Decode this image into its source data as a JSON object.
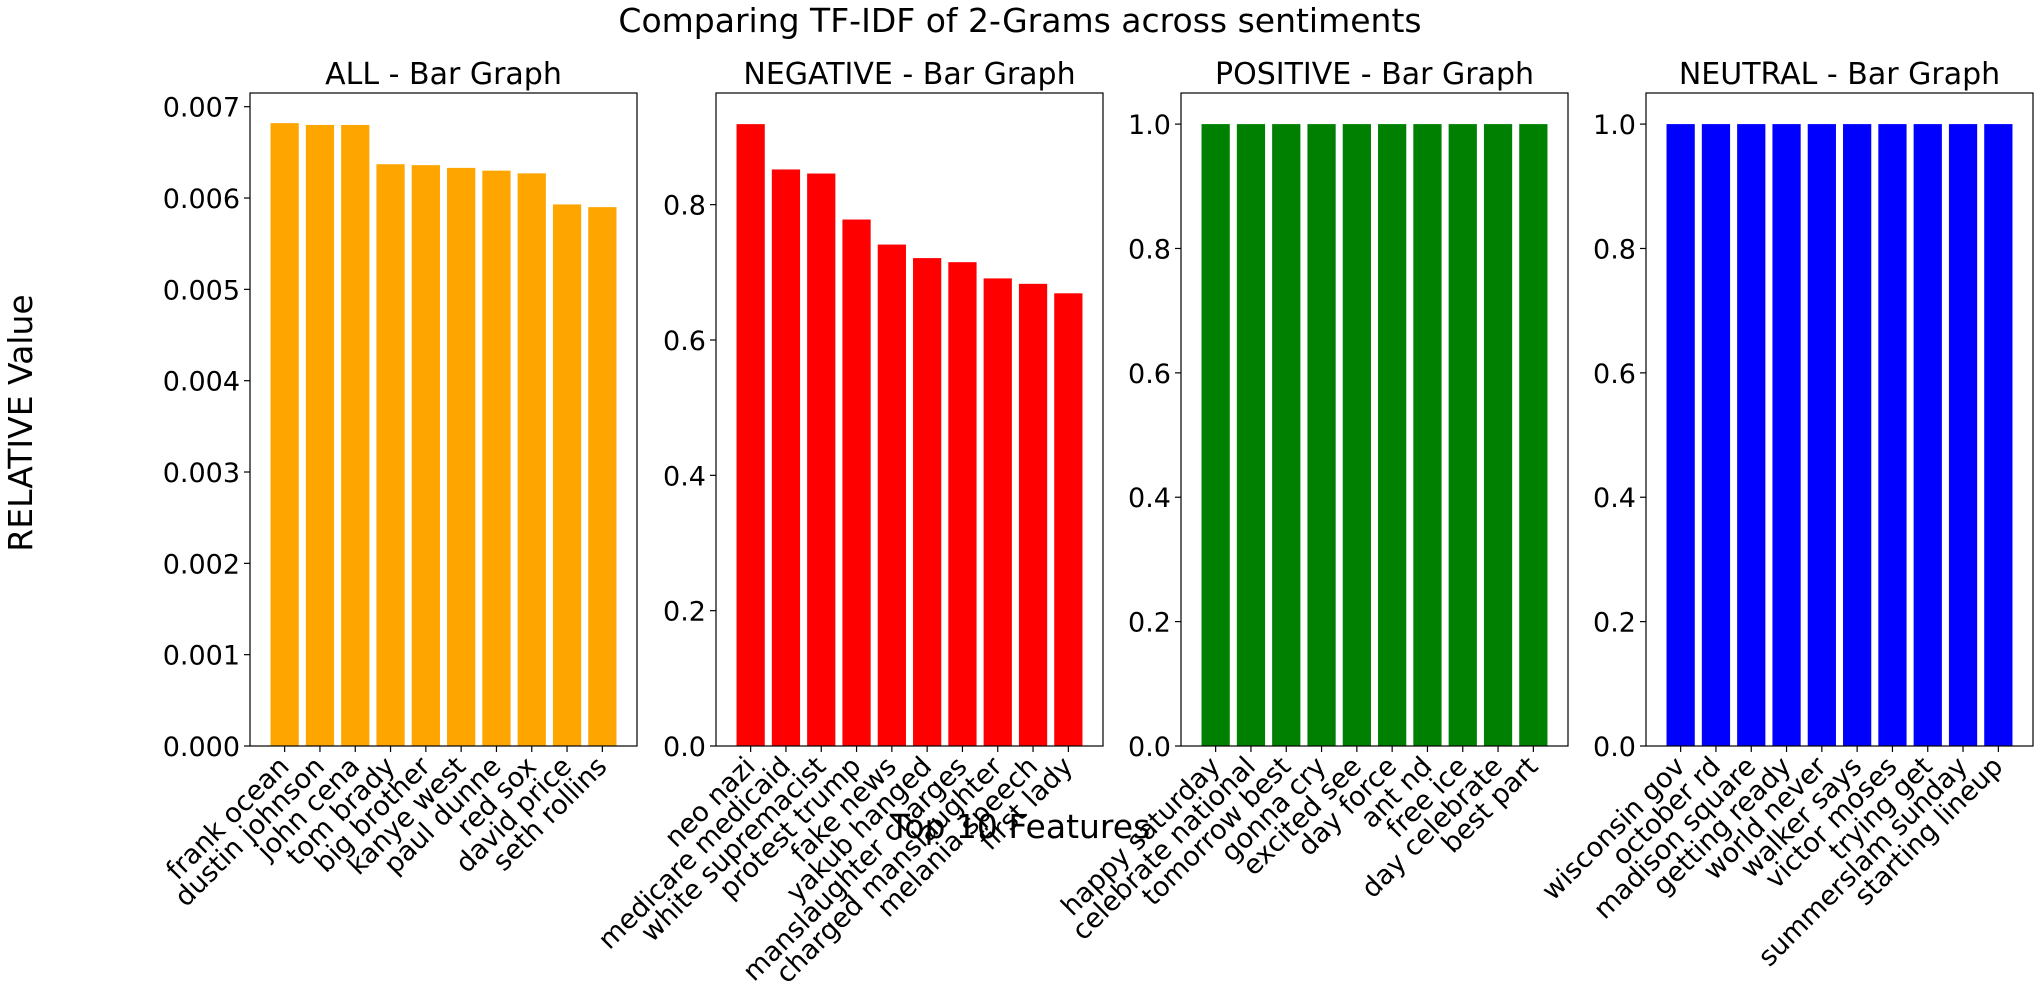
{
  "figure": {
    "suptitle": "Comparing TF-IDF of 2-Grams across sentiments",
    "ylabel": "RELATIVE Value",
    "xlabel": "Top 10 Features"
  },
  "chart_data": [
    {
      "type": "bar",
      "title": "ALL - Bar Graph",
      "color": "#ffa500",
      "categories": [
        "frank ocean",
        "dustin johnson",
        "john cena",
        "tom brady",
        "big brother",
        "kanye west",
        "paul dunne",
        "red sox",
        "david price",
        "seth rollins"
      ],
      "values": [
        0.00682,
        0.0068,
        0.0068,
        0.00637,
        0.00636,
        0.00633,
        0.0063,
        0.00627,
        0.00593,
        0.0059
      ],
      "ylim": [
        0,
        0.00715
      ],
      "yticks": [
        "0.000",
        "0.001",
        "0.002",
        "0.003",
        "0.004",
        "0.005",
        "0.006",
        "0.007"
      ],
      "ytick_values": [
        0,
        0.001,
        0.002,
        0.003,
        0.004,
        0.005,
        0.006,
        0.007
      ]
    },
    {
      "type": "bar",
      "title": "NEGATIVE - Bar Graph",
      "color": "#ff0000",
      "categories": [
        "neo nazi",
        "medicare medicaid",
        "white supremacist",
        "protest trump",
        "fake news",
        "yakub hanged",
        "manslaughter charges",
        "charged manslaughter",
        "melania speech",
        "first lady"
      ],
      "values": [
        0.919,
        0.852,
        0.846,
        0.778,
        0.741,
        0.721,
        0.715,
        0.691,
        0.683,
        0.669
      ],
      "ylim": [
        0,
        0.965
      ],
      "yticks": [
        "0.0",
        "0.2",
        "0.4",
        "0.6",
        "0.8"
      ],
      "ytick_values": [
        0,
        0.2,
        0.4,
        0.6,
        0.8
      ]
    },
    {
      "type": "bar",
      "title": "POSITIVE - Bar Graph",
      "color": "#008000",
      "categories": [
        "happy saturday",
        "celebrate national",
        "tomorrow best",
        "gonna cry",
        "excited see",
        "day force",
        "ant nd",
        "free ice",
        "day celebrate",
        "best part"
      ],
      "values": [
        1.0,
        1.0,
        1.0,
        1.0,
        1.0,
        1.0,
        1.0,
        1.0,
        1.0,
        1.0
      ],
      "ylim": [
        0,
        1.05
      ],
      "yticks": [
        "0.0",
        "0.2",
        "0.4",
        "0.6",
        "0.8",
        "1.0"
      ],
      "ytick_values": [
        0,
        0.2,
        0.4,
        0.6,
        0.8,
        1.0
      ]
    },
    {
      "type": "bar",
      "title": "NEUTRAL - Bar Graph",
      "color": "#0000ff",
      "categories": [
        "wisconsin gov",
        "october rd",
        "madison square",
        "getting ready",
        "world never",
        "walker says",
        "victor moses",
        "trying get",
        "summerslam sunday",
        "starting lineup"
      ],
      "values": [
        1.0,
        1.0,
        1.0,
        1.0,
        1.0,
        1.0,
        1.0,
        1.0,
        1.0,
        1.0
      ],
      "ylim": [
        0,
        1.05
      ],
      "yticks": [
        "0.0",
        "0.2",
        "0.4",
        "0.6",
        "0.8",
        "1.0"
      ],
      "ytick_values": [
        0,
        0.2,
        0.4,
        0.6,
        0.8,
        1.0
      ]
    }
  ]
}
